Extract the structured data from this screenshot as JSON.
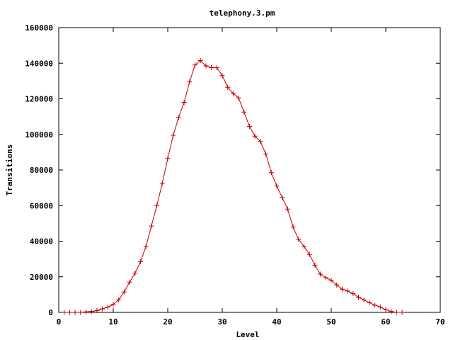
{
  "chart_data": {
    "type": "line",
    "title": "telephony.3.pm",
    "xlabel": "Level",
    "ylabel": "Transitions",
    "xlim": [
      0,
      70
    ],
    "ylim": [
      0,
      160000
    ],
    "xticks": [
      0,
      10,
      20,
      30,
      40,
      50,
      60,
      70
    ],
    "yticks": [
      0,
      20000,
      40000,
      60000,
      80000,
      100000,
      120000,
      140000,
      160000
    ],
    "grid": false,
    "marker": "plus",
    "colors": {
      "series": "#c00000",
      "axis": "#000000"
    },
    "series": [
      {
        "name": "",
        "x": [
          1,
          2,
          3,
          4,
          5,
          6,
          7,
          8,
          9,
          10,
          11,
          12,
          13,
          14,
          15,
          16,
          17,
          18,
          19,
          20,
          21,
          22,
          23,
          24,
          25,
          26,
          27,
          28,
          29,
          30,
          31,
          32,
          33,
          34,
          35,
          36,
          37,
          38,
          39,
          40,
          41,
          42,
          43,
          44,
          45,
          46,
          47,
          48,
          49,
          50,
          51,
          52,
          53,
          54,
          55,
          56,
          57,
          58,
          59,
          60,
          61,
          62,
          63
        ],
        "y": [
          0,
          0,
          0,
          0,
          300,
          500,
          1000,
          2000,
          3000,
          4500,
          7000,
          11500,
          17000,
          22000,
          28500,
          37000,
          48500,
          60000,
          72500,
          86500,
          99500,
          109500,
          118000,
          129500,
          139000,
          141500,
          138500,
          137500,
          137500,
          133000,
          126500,
          123000,
          120500,
          112500,
          104500,
          99000,
          96000,
          89000,
          78500,
          71000,
          64500,
          58000,
          48000,
          41000,
          37000,
          32500,
          26500,
          21500,
          19500,
          18000,
          15500,
          13000,
          12000,
          10500,
          8500,
          7000,
          5500,
          4000,
          3000,
          1500,
          500,
          0,
          0
        ]
      }
    ]
  }
}
